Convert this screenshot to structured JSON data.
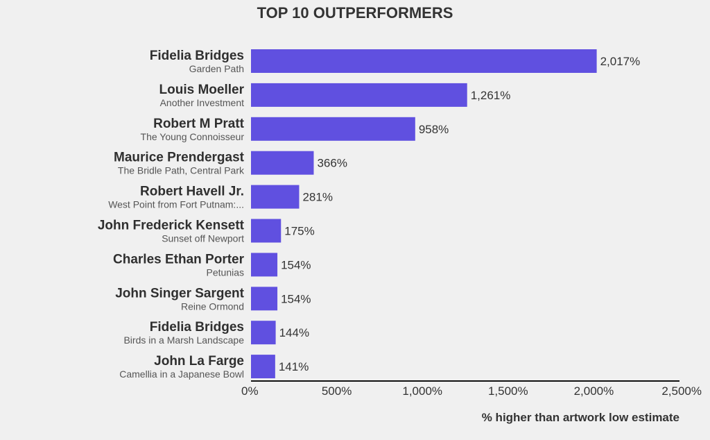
{
  "chart_data": {
    "type": "bar",
    "orientation": "horizontal",
    "title": "TOP 10 OUTPERFORMERS",
    "xlabel": "% higher than artwork low estimate",
    "ylabel": "",
    "xlim": [
      0,
      2500
    ],
    "ticks": [
      {
        "value": 0,
        "label": "0%"
      },
      {
        "value": 500,
        "label": "500%"
      },
      {
        "value": 1000,
        "label": "1,000%"
      },
      {
        "value": 1500,
        "label": "1,500%"
      },
      {
        "value": 2000,
        "label": "2,000%"
      },
      {
        "value": 2500,
        "label": "2,500%"
      }
    ],
    "grid": false,
    "bar_color": "#6050e0",
    "items": [
      {
        "artist": "Fidelia Bridges",
        "artwork": "Garden Path",
        "value": 2017,
        "label": "2,017%"
      },
      {
        "artist": "Louis Moeller",
        "artwork": "Another Investment",
        "value": 1261,
        "label": "1,261%"
      },
      {
        "artist": "Robert M Pratt",
        "artwork": "The Young Connoisseur",
        "value": 958,
        "label": "958%"
      },
      {
        "artist": "Maurice Prendergast",
        "artwork": "The Bridle Path, Central Park",
        "value": 366,
        "label": "366%"
      },
      {
        "artist": "Robert Havell Jr.",
        "artwork": "West Point from Fort Putnam:...",
        "value": 281,
        "label": "281%"
      },
      {
        "artist": "John Frederick Kensett",
        "artwork": "Sunset off Newport",
        "value": 175,
        "label": "175%"
      },
      {
        "artist": "Charles Ethan Porter",
        "artwork": "Petunias",
        "value": 154,
        "label": "154%"
      },
      {
        "artist": "John Singer Sargent",
        "artwork": "Reine Ormond",
        "value": 154,
        "label": "154%"
      },
      {
        "artist": "Fidelia Bridges",
        "artwork": "Birds in a Marsh Landscape",
        "value": 144,
        "label": "144%"
      },
      {
        "artist": "John La Farge",
        "artwork": "Camellia in a Japanese Bowl",
        "value": 141,
        "label": "141%"
      }
    ]
  }
}
